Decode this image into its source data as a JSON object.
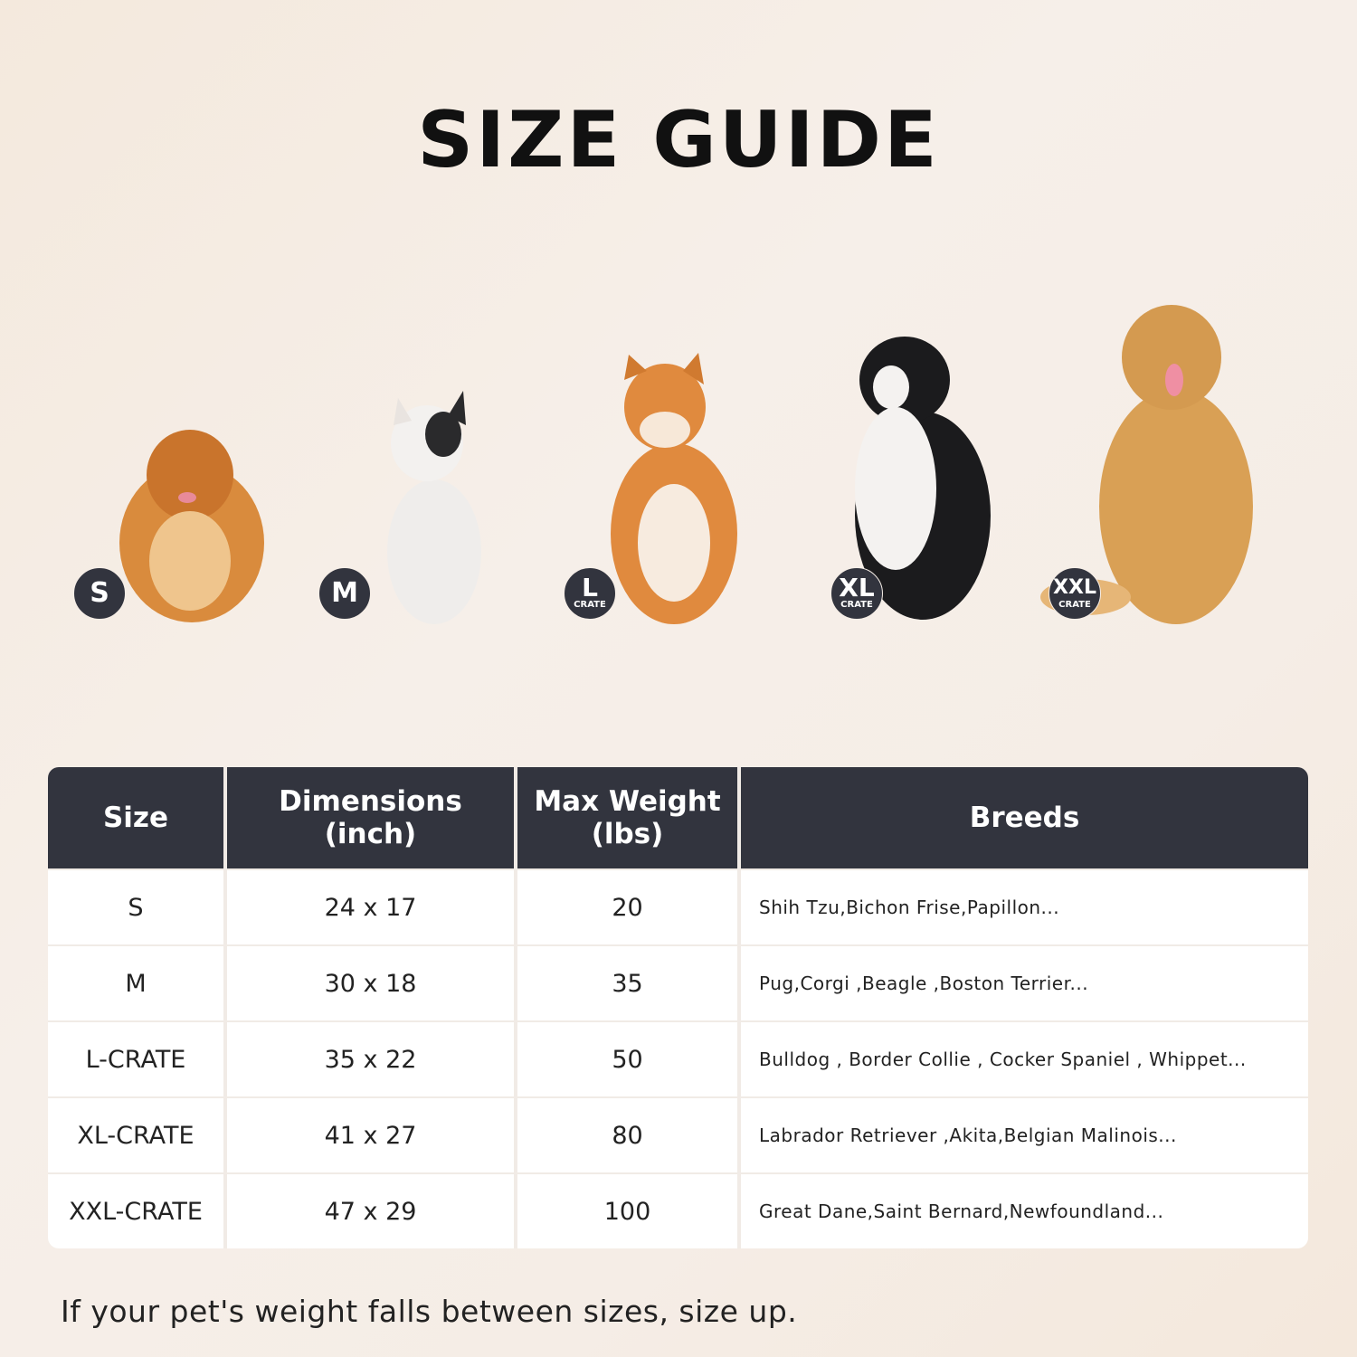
{
  "title": "SIZE GUIDE",
  "dogs": [
    {
      "badge": "S",
      "sub": "",
      "color": "#d98b3d"
    },
    {
      "badge": "M",
      "sub": "",
      "color": "#f2f0ee"
    },
    {
      "badge": "L",
      "sub": "CRATE",
      "color": "#e08a3e"
    },
    {
      "badge": "XL",
      "sub": "CRATE",
      "color": "#1b1b1d"
    },
    {
      "badge": "XXL",
      "sub": "CRATE",
      "color": "#d9a055"
    }
  ],
  "table": {
    "headers": [
      {
        "line1": "Size",
        "line2": ""
      },
      {
        "line1": "Dimensions",
        "line2": "(inch)"
      },
      {
        "line1": "Max Weight",
        "line2": "(lbs)"
      },
      {
        "line1": "Breeds",
        "line2": ""
      }
    ],
    "rows": [
      {
        "size": "S",
        "dimensions": "24 x 17",
        "weight": "20",
        "breeds": "Shih Tzu,Bichon Frise,Papillon..."
      },
      {
        "size": "M",
        "dimensions": "30 x 18",
        "weight": "35",
        "breeds": "Pug,Corgi ,Beagle ,Boston Terrier..."
      },
      {
        "size": "L-CRATE",
        "dimensions": "35 x 22",
        "weight": "50",
        "breeds": "Bulldog , Border Collie , Cocker Spaniel , Whippet..."
      },
      {
        "size": "XL-CRATE",
        "dimensions": "41 x 27",
        "weight": "80",
        "breeds": "Labrador Retriever ,Akita,Belgian Malinois..."
      },
      {
        "size": "XXL-CRATE",
        "dimensions": "47 x 29",
        "weight": "100",
        "breeds": "Great Dane,Saint Bernard,Newfoundland..."
      }
    ]
  },
  "colors": {
    "header_bg": "#32343e",
    "badge_bg": "#32343e"
  },
  "note": "If your pet's weight falls between sizes, size up."
}
